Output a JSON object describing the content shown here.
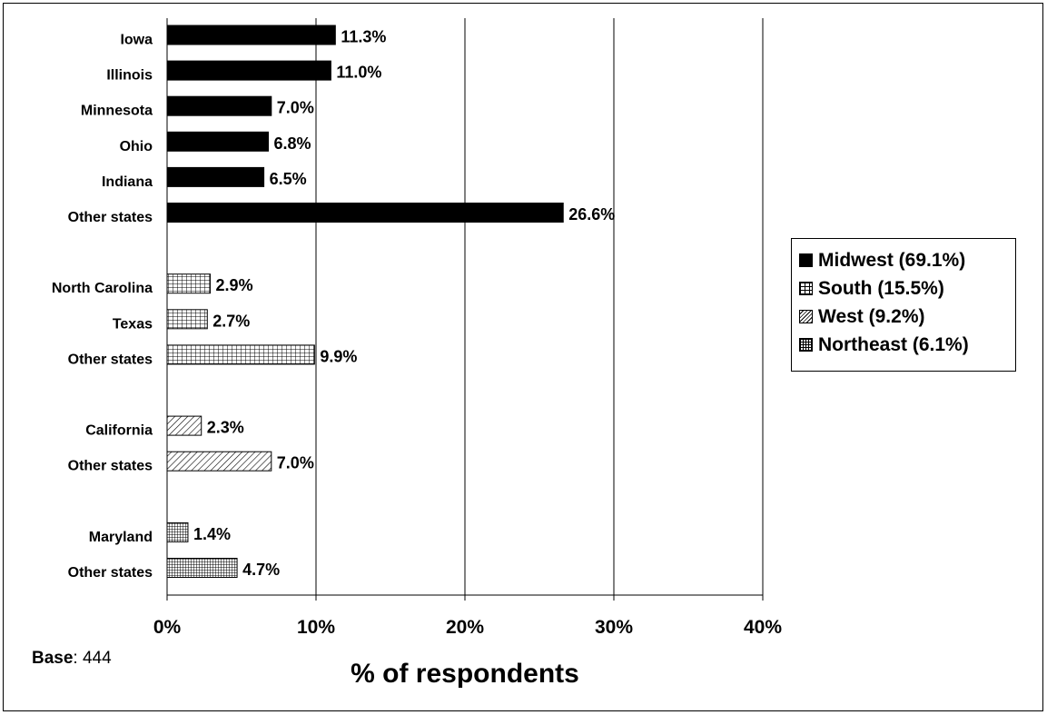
{
  "chart_data": {
    "type": "bar",
    "orientation": "horizontal",
    "xlabel": "% of respondents",
    "xlim": [
      0,
      40
    ],
    "x_ticks": [
      "0%",
      "10%",
      "20%",
      "30%",
      "40%"
    ],
    "grid": true,
    "legend_position": "right",
    "series": [
      {
        "name": "Midwest (69.1%)",
        "pattern": "solid",
        "categories": [
          "Iowa",
          "Illinois",
          "Minnesota",
          "Ohio",
          "Indiana",
          "Other states"
        ],
        "values": [
          11.3,
          11.0,
          7.0,
          6.8,
          6.5,
          26.6
        ],
        "labels": [
          "11.3%",
          "11.0%",
          "7.0%",
          "6.8%",
          "6.5%",
          "26.6%"
        ]
      },
      {
        "name": "South (15.5%)",
        "pattern": "grid",
        "categories": [
          "North Carolina",
          "Texas",
          "Other states"
        ],
        "values": [
          2.9,
          2.7,
          9.9
        ],
        "labels": [
          "2.9%",
          "2.7%",
          "9.9%"
        ]
      },
      {
        "name": "West (9.2%)",
        "pattern": "diagonal",
        "categories": [
          "California",
          "Other states"
        ],
        "values": [
          2.3,
          7.0
        ],
        "labels": [
          "2.3%",
          "7.0%"
        ]
      },
      {
        "name": "Northeast (6.1%)",
        "pattern": "fine-grid",
        "categories": [
          "Maryland",
          "Other states"
        ],
        "values": [
          1.4,
          4.7
        ],
        "labels": [
          "1.4%",
          "4.7%"
        ]
      }
    ]
  },
  "base": {
    "label": "Base",
    "value": "444"
  },
  "colors": {
    "bar": "#000000",
    "background": "#ffffff"
  }
}
